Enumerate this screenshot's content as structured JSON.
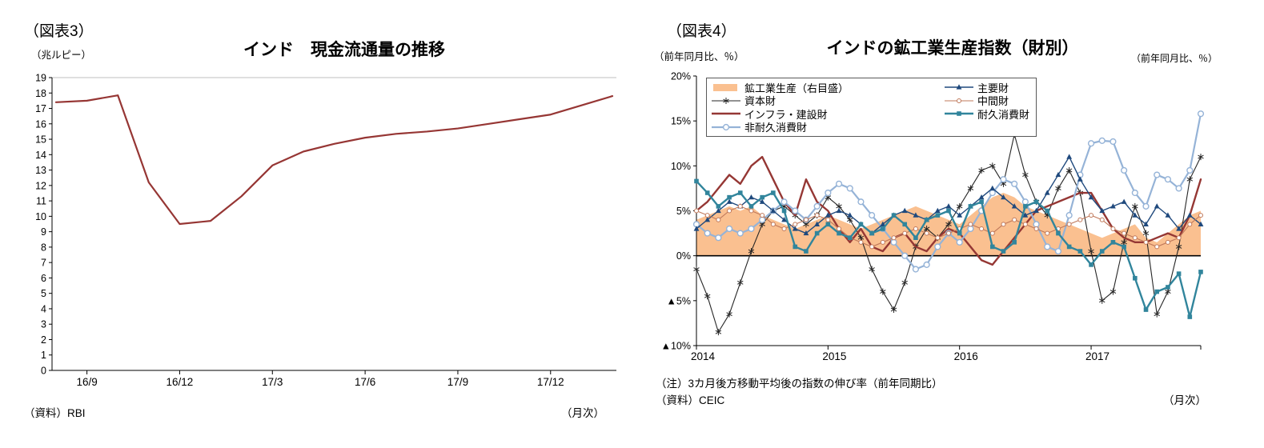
{
  "page": {
    "background": "#ffffff"
  },
  "chartA": {
    "figure_label": "（図表3）",
    "title": "インド　現金流通量の推移",
    "y_unit": "（兆ルピー）",
    "source": "（資料）RBI",
    "freq_label": "（月次）",
    "line_color": "#963634",
    "chart_data": {
      "type": "line",
      "x_months": [
        "16/8",
        "16/9",
        "16/10",
        "16/11",
        "16/12",
        "17/1",
        "17/2",
        "17/3",
        "17/4",
        "17/5",
        "17/6",
        "17/7",
        "17/8",
        "17/9",
        "17/10",
        "17/11",
        "17/12",
        "18/1",
        "18/2"
      ],
      "values": [
        17.4,
        17.5,
        17.85,
        12.2,
        9.5,
        9.7,
        11.3,
        13.3,
        14.2,
        14.7,
        15.1,
        15.35,
        15.5,
        15.7,
        16.0,
        16.3,
        16.6,
        17.2,
        17.8
      ],
      "x_tick_labels": [
        "16/9",
        "16/12",
        "17/3",
        "17/6",
        "17/9",
        "17/12"
      ],
      "x_tick_indices": [
        1,
        4,
        7,
        10,
        13,
        16
      ],
      "y_ticks": [
        0,
        1,
        2,
        3,
        4,
        5,
        6,
        7,
        8,
        9,
        10,
        11,
        12,
        13,
        14,
        15,
        16,
        17,
        18,
        19
      ],
      "ylim": [
        0,
        19
      ],
      "grid": "top-line-only",
      "legend": "none"
    }
  },
  "chartB": {
    "figure_label": "（図表4）",
    "title": "インドの鉱工業生産指数（財別）",
    "y_unit_left": "（前年同月比、％）",
    "y_unit_right": "（前年同月比、％）",
    "note": "（注）3カ月後方移動平均後の指数の伸び率（前年同期比）",
    "source": "（資料）CEIC",
    "freq_label": "（月次）",
    "chart_data": {
      "type": "line",
      "x_start": "2014-01",
      "x_end": "2017-11",
      "x_frequency": "monthly",
      "x_tick_labels": [
        "2014",
        "2015",
        "2016",
        "2017"
      ],
      "x_tick_indices": [
        0,
        12,
        24,
        36
      ],
      "y_tick_labels": [
        "20%",
        "15%",
        "10%",
        "5%",
        "0%",
        "▲5%",
        "▲10%"
      ],
      "y_tick_values": [
        20,
        15,
        10,
        5,
        0,
        -5,
        -10
      ],
      "ylim": [
        -10,
        20
      ],
      "legend_position": "top-inside-box",
      "series": [
        {
          "id": "iip",
          "label": "鉱工業生産（右目盛）",
          "type": "area",
          "axis": "right",
          "color": "#FAC090",
          "values": [
            4.0,
            4.5,
            5.0,
            5.5,
            5.0,
            5.5,
            4.5,
            4.0,
            3.5,
            3.0,
            3.5,
            4.0,
            4.5,
            4.0,
            3.5,
            3.0,
            3.5,
            4.0,
            4.5,
            5.0,
            5.5,
            5.0,
            4.5,
            4.0,
            3.5,
            4.5,
            5.5,
            6.5,
            7.0,
            6.5,
            5.5,
            5.0,
            4.5,
            4.0,
            3.5,
            3.0,
            2.5,
            2.0,
            2.5,
            3.0,
            3.5,
            2.0,
            1.5,
            2.5,
            3.5,
            4.5,
            5.0
          ]
        },
        {
          "id": "capital",
          "label": "資本財",
          "type": "line",
          "marker": "asterisk",
          "color": "#262626",
          "width": 1.1,
          "values": [
            -1.5,
            -4.5,
            -8.5,
            -6.5,
            -3.0,
            0.5,
            3.5,
            5.0,
            5.5,
            4.5,
            3.5,
            4.5,
            6.5,
            5.5,
            4.0,
            2.0,
            -1.5,
            -4.0,
            -6.0,
            -3.0,
            1.0,
            3.0,
            2.0,
            3.5,
            5.5,
            7.5,
            9.5,
            10.0,
            8.0,
            13.5,
            9.0,
            6.0,
            4.5,
            7.5,
            9.5,
            7.0,
            0.5,
            -5.0,
            -4.0,
            1.5,
            5.5,
            2.5,
            -6.5,
            -4.0,
            1.0,
            8.5,
            11.0
          ]
        },
        {
          "id": "infra",
          "label": "インフラ・建設財",
          "type": "line",
          "marker": "none",
          "color": "#953734",
          "width": 2.4,
          "values": [
            5.0,
            6.0,
            7.5,
            9.0,
            8.0,
            10.0,
            11.0,
            8.5,
            6.0,
            4.5,
            8.5,
            6.0,
            5.0,
            3.0,
            1.5,
            3.0,
            1.0,
            0.5,
            2.0,
            2.5,
            1.0,
            0.5,
            2.0,
            3.0,
            2.5,
            1.0,
            -0.5,
            -1.0,
            0.5,
            2.0,
            3.5,
            5.0,
            5.5,
            6.0,
            6.5,
            7.0,
            7.0,
            5.0,
            3.0,
            2.0,
            1.5,
            1.5,
            2.0,
            2.5,
            2.0,
            4.5,
            8.5
          ]
        },
        {
          "id": "nondurable",
          "label": "非耐久消費財",
          "type": "line",
          "marker": "circle-open",
          "color": "#95B3D7",
          "width": 2.2,
          "values": [
            3.5,
            2.5,
            2.0,
            3.0,
            2.5,
            3.0,
            4.0,
            5.0,
            6.0,
            5.0,
            4.0,
            5.5,
            7.0,
            8.0,
            7.5,
            6.0,
            4.5,
            3.0,
            1.5,
            0.0,
            -1.5,
            -1.0,
            1.0,
            2.5,
            1.5,
            3.0,
            5.0,
            7.0,
            8.5,
            8.0,
            6.0,
            3.5,
            1.0,
            0.5,
            4.5,
            9.0,
            12.5,
            12.8,
            12.7,
            9.5,
            7.0,
            5.5,
            9.0,
            8.5,
            7.5,
            9.5,
            15.8
          ]
        },
        {
          "id": "primary",
          "label": "主要財",
          "type": "line",
          "marker": "triangle",
          "color": "#1F497D",
          "width": 1.4,
          "values": [
            3.0,
            4.0,
            5.0,
            6.0,
            5.5,
            6.5,
            6.0,
            5.0,
            4.0,
            3.0,
            2.5,
            3.5,
            4.5,
            5.0,
            4.5,
            3.5,
            2.5,
            3.5,
            4.5,
            5.0,
            4.5,
            4.0,
            5.0,
            5.5,
            4.5,
            5.5,
            6.5,
            7.5,
            6.5,
            5.5,
            4.5,
            5.0,
            7.0,
            9.0,
            11.0,
            8.5,
            6.5,
            5.0,
            5.5,
            6.0,
            4.5,
            3.5,
            5.5,
            4.5,
            3.0,
            4.5,
            3.5
          ]
        },
        {
          "id": "intermediate",
          "label": "中間財",
          "type": "line",
          "marker": "circle-open-small",
          "color": "#C0795B",
          "width": 1.1,
          "values": [
            5.0,
            4.5,
            4.0,
            5.0,
            5.5,
            5.0,
            4.5,
            3.5,
            3.0,
            3.5,
            4.0,
            4.5,
            4.0,
            3.0,
            2.0,
            1.5,
            1.0,
            1.5,
            2.0,
            2.5,
            3.0,
            2.5,
            2.0,
            2.5,
            3.0,
            3.5,
            3.0,
            2.5,
            3.5,
            4.0,
            3.5,
            3.0,
            2.5,
            3.0,
            3.5,
            4.0,
            4.5,
            4.0,
            3.0,
            2.5,
            2.0,
            1.5,
            1.0,
            1.5,
            2.0,
            3.5,
            4.5
          ]
        },
        {
          "id": "durable",
          "label": "耐久消費財",
          "type": "line",
          "marker": "square",
          "color": "#31859C",
          "width": 2.4,
          "values": [
            8.3,
            7.0,
            5.5,
            6.5,
            7.0,
            5.5,
            6.5,
            7.0,
            5.0,
            1.0,
            0.5,
            2.5,
            3.5,
            2.5,
            2.0,
            3.5,
            2.5,
            3.0,
            4.5,
            3.5,
            2.0,
            4.0,
            4.5,
            5.0,
            2.5,
            5.5,
            6.0,
            1.0,
            0.5,
            1.5,
            5.5,
            6.0,
            5.0,
            2.5,
            1.0,
            0.5,
            -1.0,
            0.5,
            1.5,
            1.0,
            -2.5,
            -6.0,
            -4.0,
            -3.5,
            -2.0,
            -6.8,
            -1.8
          ]
        }
      ]
    }
  }
}
